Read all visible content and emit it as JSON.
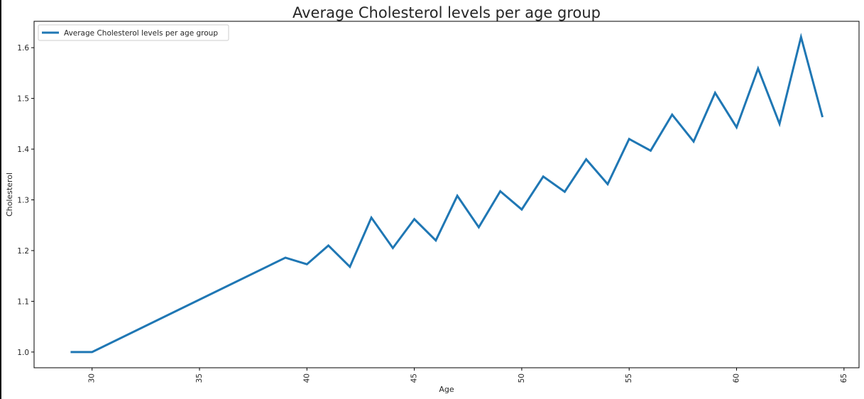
{
  "chart_data": {
    "type": "line",
    "title": "Average Cholesterol levels per age group",
    "xlabel": "Age",
    "ylabel": "Cholesterol",
    "xlim": [
      27.3,
      65.7
    ],
    "ylim": [
      0.969,
      1.652
    ],
    "xticks": [
      30,
      35,
      40,
      45,
      50,
      55,
      60,
      65
    ],
    "yticks": [
      1.0,
      1.1,
      1.2,
      1.3,
      1.4,
      1.5,
      1.6
    ],
    "ytick_labels": [
      "1.0",
      "1.1",
      "1.2",
      "1.3",
      "1.4",
      "1.5",
      "1.6"
    ],
    "xtick_rotation": 90,
    "grid": false,
    "legend_position": "top-left",
    "series": [
      {
        "name": "Average Cholesterol levels per age group",
        "color": "#1f77b4",
        "x": [
          29,
          30,
          39,
          40,
          41,
          42,
          43,
          44,
          45,
          46,
          47,
          48,
          49,
          50,
          51,
          52,
          53,
          54,
          55,
          56,
          57,
          58,
          59,
          60,
          61,
          62,
          63,
          64
        ],
        "y": [
          1.0,
          1.0,
          1.186,
          1.173,
          1.21,
          1.168,
          1.265,
          1.205,
          1.262,
          1.22,
          1.308,
          1.246,
          1.317,
          1.281,
          1.346,
          1.316,
          1.38,
          1.331,
          1.42,
          1.397,
          1.468,
          1.415,
          1.511,
          1.443,
          1.559,
          1.45,
          1.621,
          1.463
        ]
      }
    ]
  }
}
